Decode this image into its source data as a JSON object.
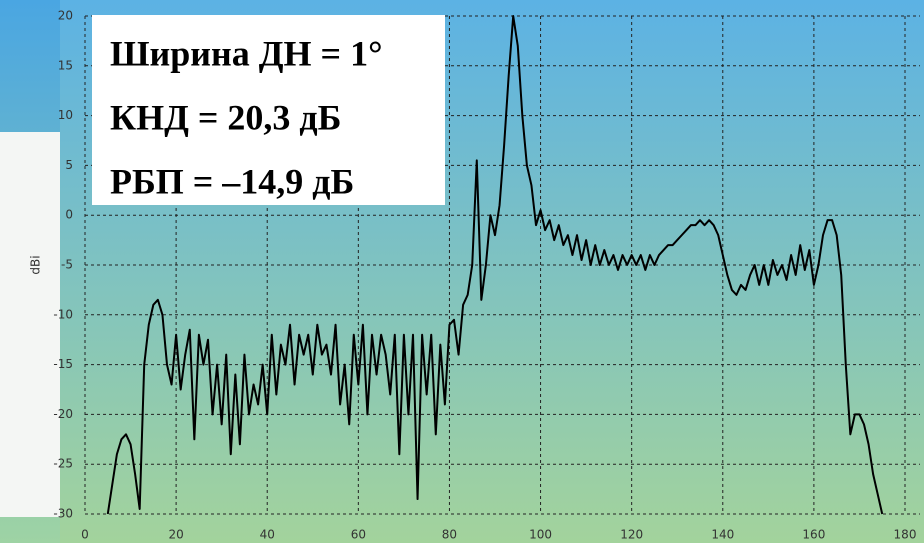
{
  "chart_data": {
    "type": "line",
    "annotations": [
      "Ширина ДН = 1°",
      "КНД = 20,3 дБ",
      "РБП = –14,9 дБ"
    ],
    "y_label": "dBi",
    "x": [
      5,
      6,
      7,
      8,
      9,
      10,
      11,
      12,
      13,
      14,
      15,
      16,
      17,
      18,
      19,
      20,
      21,
      22,
      23,
      24,
      25,
      26,
      27,
      28,
      29,
      30,
      31,
      32,
      33,
      34,
      35,
      36,
      37,
      38,
      39,
      40,
      41,
      42,
      43,
      44,
      45,
      46,
      47,
      48,
      49,
      50,
      51,
      52,
      53,
      54,
      55,
      56,
      57,
      58,
      59,
      60,
      61,
      62,
      63,
      64,
      65,
      66,
      67,
      68,
      69,
      70,
      71,
      72,
      73,
      74,
      75,
      76,
      77,
      78,
      79,
      80,
      81,
      82,
      83,
      84,
      85,
      86,
      87,
      88,
      89,
      90,
      91,
      92,
      93,
      94,
      95,
      96,
      97,
      98,
      99,
      100,
      101,
      102,
      103,
      104,
      105,
      106,
      107,
      108,
      109,
      110,
      111,
      112,
      113,
      114,
      115,
      116,
      117,
      118,
      119,
      120,
      121,
      122,
      123,
      124,
      125,
      126,
      127,
      128,
      129,
      130,
      131,
      132,
      133,
      134,
      135,
      136,
      137,
      138,
      139,
      140,
      141,
      142,
      143,
      144,
      145,
      146,
      147,
      148,
      149,
      150,
      151,
      152,
      153,
      154,
      155,
      156,
      157,
      158,
      159,
      160,
      161,
      162,
      163,
      164,
      165,
      166,
      167,
      168,
      169,
      170,
      171,
      172,
      173,
      174,
      175
    ],
    "series": [
      {
        "color": "#000000",
        "values": [
          -30,
          -27,
          -24,
          -22.5,
          -22,
          -23,
          -26,
          -29.5,
          -15,
          -11,
          -9,
          -8.5,
          -10,
          -15,
          -17,
          -12,
          -17.5,
          -14,
          -11.5,
          -22.5,
          -12,
          -15,
          -12.5,
          -20,
          -15,
          -21,
          -14,
          -24,
          -16,
          -23,
          -14,
          -20,
          -17,
          -19,
          -15,
          -20,
          -12,
          -18,
          -13,
          -15,
          -11,
          -17,
          -12,
          -14,
          -12,
          -16,
          -11,
          -14,
          -13,
          -16,
          -11,
          -19,
          -15,
          -21,
          -12,
          -17,
          -11,
          -20,
          -12,
          -16,
          -12,
          -14,
          -18,
          -12,
          -24,
          -12,
          -20,
          -12,
          -28.5,
          -12,
          -18,
          -12,
          -22,
          -13,
          -19,
          -11,
          -10.5,
          -14,
          -9,
          -8,
          -5,
          5.5,
          -8.5,
          -5,
          0,
          -2,
          1,
          7,
          14,
          20,
          17,
          10,
          5,
          3,
          -1,
          0.5,
          -1.5,
          -0.5,
          -2.5,
          -1,
          -3,
          -2,
          -4,
          -2,
          -4.5,
          -2.5,
          -5,
          -3,
          -5,
          -3.5,
          -5,
          -4,
          -5.5,
          -4,
          -5,
          -4,
          -5,
          -4,
          -5.5,
          -4,
          -5,
          -4,
          -3.5,
          -3,
          -3,
          -2.5,
          -2,
          -1.5,
          -1,
          -1,
          -0.5,
          -1,
          -0.5,
          -1,
          -2,
          -4,
          -6,
          -7.5,
          -8,
          -7,
          -7.5,
          -6,
          -5,
          -7,
          -5,
          -7,
          -4.5,
          -6,
          -5,
          -6.5,
          -4,
          -6,
          -3,
          -5.5,
          -3.5,
          -7,
          -5,
          -2,
          -0.5,
          -0.5,
          -2,
          -6,
          -15,
          -22,
          -20,
          -20,
          -21,
          -23,
          -26,
          -28,
          -30
        ]
      }
    ],
    "xlim": [
      0,
      180
    ],
    "xticks": [
      0,
      20,
      40,
      60,
      80,
      100,
      120,
      140,
      160,
      180
    ],
    "ylim": [
      -30,
      20
    ],
    "yticks": [
      -30,
      -25,
      -20,
      -15,
      -10,
      -5,
      0,
      5,
      10,
      15,
      20
    ],
    "grid": true
  }
}
